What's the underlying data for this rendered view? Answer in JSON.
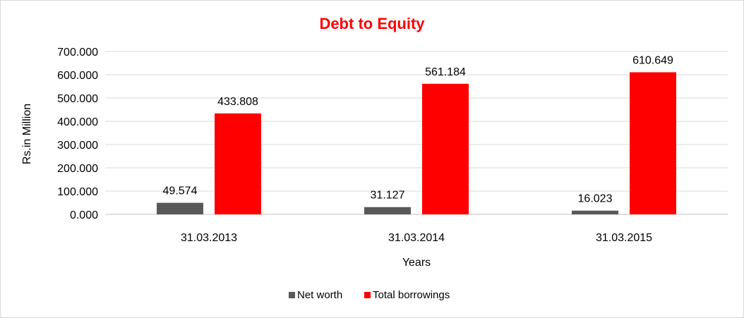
{
  "chart_data": {
    "type": "bar",
    "title": "Debt to Equity",
    "xlabel": "Years",
    "ylabel": "Rs.in Million",
    "categories": [
      "31.03.2013",
      "31.03.2014",
      "31.03.2015"
    ],
    "series": [
      {
        "name": "Net worth",
        "color": "#595959",
        "values": [
          49.574,
          31.127,
          16.023
        ]
      },
      {
        "name": "Total borrowings",
        "color": "#ff0000",
        "values": [
          433.808,
          561.184,
          610.649
        ]
      }
    ],
    "ylim": [
      0,
      700
    ],
    "yticks": [
      0,
      100,
      200,
      300,
      400,
      500,
      600,
      700
    ],
    "ytick_labels": [
      "0.000",
      "100.000",
      "200.000",
      "300.000",
      "400.000",
      "500.000",
      "600.000",
      "700.000"
    ],
    "data_labels": [
      [
        "49.574",
        "31.127",
        "16.023"
      ],
      [
        "433.808",
        "561.184",
        "610.649"
      ]
    ],
    "grid": true,
    "legend_position": "bottom",
    "title_color": "#ff0000"
  }
}
